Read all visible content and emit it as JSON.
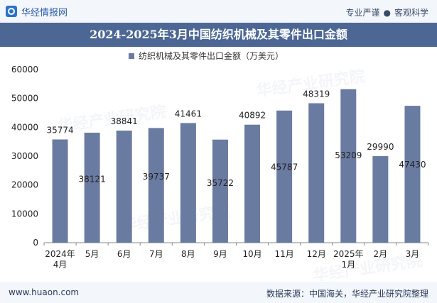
{
  "header": {
    "brand_name": "华经情报网",
    "tagline_left": "专业严谨",
    "tagline_sep": "●",
    "tagline_right": "客观科学"
  },
  "title": "2024-2025年3月中国纺织机械及其零件出口金额",
  "watermark": "华经产业研究院",
  "footer": {
    "url": "www.huaon.com",
    "source": "数据来源：中国海关，华经产业研究院整理"
  },
  "colors": {
    "bar": "#6a7ba2",
    "header_band": "#4d6795",
    "legend_marker": "#6a7ba2"
  },
  "chart_data": {
    "type": "bar",
    "title": "2024-2025年3月中国纺织机械及其零件出口金额",
    "categories": [
      [
        "2024年",
        "4月"
      ],
      [
        "5月"
      ],
      [
        "6月"
      ],
      [
        "7月"
      ],
      [
        "8月"
      ],
      [
        "9月"
      ],
      [
        "10月"
      ],
      [
        "11月"
      ],
      [
        "12月"
      ],
      [
        "2025年",
        "1月"
      ],
      [
        "2月"
      ],
      [
        "3月"
      ]
    ],
    "series": [
      {
        "name": "纺织机械及其零件出口金额（万美元）",
        "values": [
          35774,
          38121,
          38841,
          39737,
          41461,
          35722,
          40892,
          45787,
          48319,
          53209,
          29990,
          47430
        ]
      }
    ],
    "label_inside": [
      false,
      true,
      false,
      true,
      false,
      true,
      false,
      true,
      false,
      true,
      false,
      true
    ],
    "yticks": [
      0,
      10000,
      20000,
      30000,
      40000,
      50000,
      60000
    ],
    "ylim": [
      0,
      60000
    ],
    "legend": "top-center",
    "grid": false
  }
}
